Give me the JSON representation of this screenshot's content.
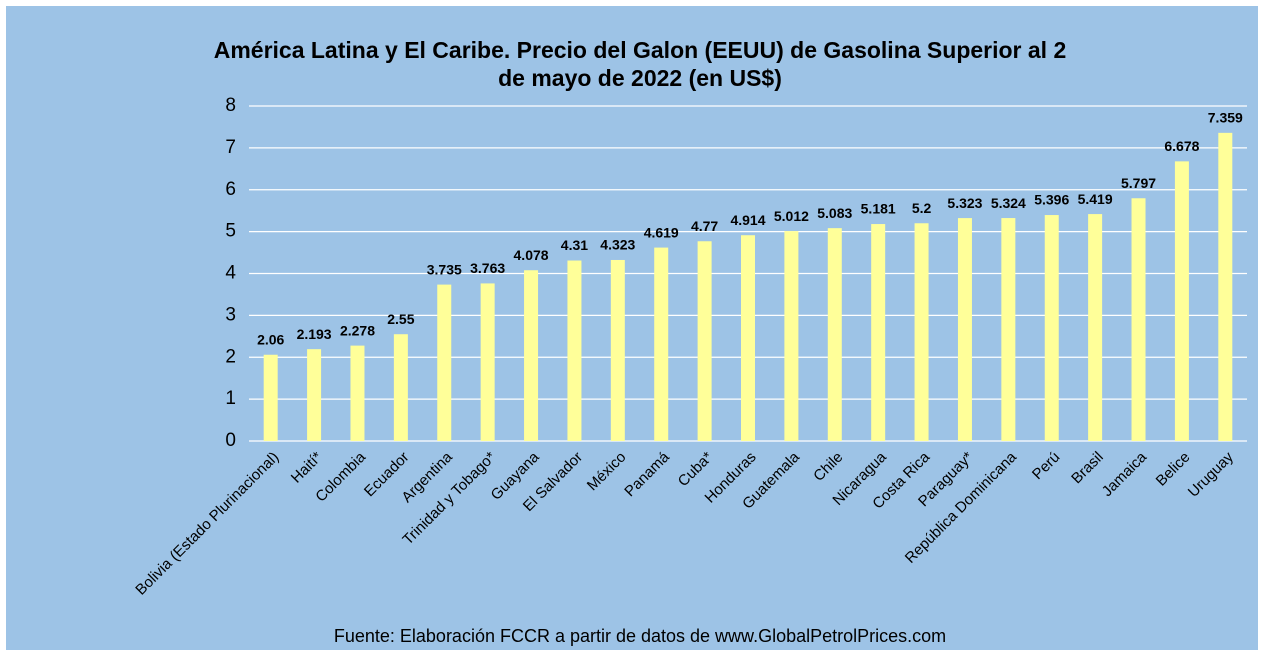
{
  "chart_data": {
    "type": "bar",
    "title": [
      "América Latina y  El Caribe. Precio del Galon (EEUU) de Gasolina Superior al 2",
      "de mayo  de 2022 (en US$)"
    ],
    "categories": [
      "Bolivia (Estado Plurinacional)",
      "Haití*",
      "Colombia",
      "Ecuador",
      "Argentina",
      "Trinidad y Tobago*",
      "Guayana",
      "El Salvador",
      "México",
      "Panamá",
      "Cuba*",
      "Honduras",
      "Guatemala",
      "Chile",
      "Nicaragua",
      "Costa Rica",
      "Paraguay*",
      "República Dominicana",
      "Perú",
      "Brasil",
      "Jamaica",
      "Belice",
      "Uruguay"
    ],
    "values": [
      2.06,
      2.193,
      2.278,
      2.55,
      3.735,
      3.763,
      4.078,
      4.31,
      4.323,
      4.619,
      4.77,
      4.914,
      5.012,
      5.083,
      5.181,
      5.2,
      5.323,
      5.324,
      5.396,
      5.419,
      5.797,
      6.678,
      7.359
    ],
    "color": "#ffff99",
    "background": "#9dc3e6",
    "ylim": [
      0,
      8
    ],
    "yticks": [
      0,
      1,
      2,
      3,
      4,
      5,
      6,
      7,
      8
    ],
    "grid": true,
    "source": "Fuente: Elaboración FCCR a partir de datos de www.GlobalPetrolPrices.com"
  }
}
